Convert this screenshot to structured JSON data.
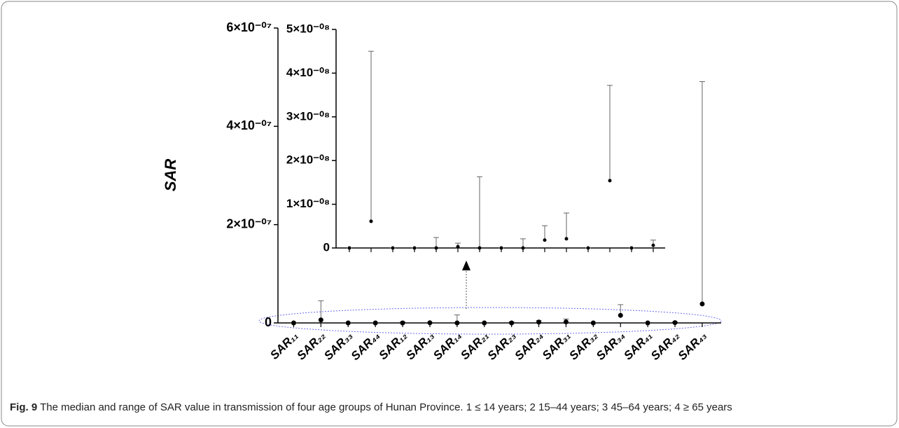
{
  "chart_data": [
    {
      "type": "range",
      "y_label": "SAR",
      "categories": [
        "SAR₁₁",
        "SAR₂₂",
        "SAR₃₃",
        "SAR₄₄",
        "SAR₁₂",
        "SAR₁₃",
        "SAR₁₄",
        "SAR₂₁",
        "SAR₂₃",
        "SAR₂₄",
        "SAR₃₁",
        "SAR₃₂",
        "SAR₃₄",
        "SAR₄₁",
        "SAR₄₂",
        "SAR₄₃"
      ],
      "values": [
        0,
        6.1e-09,
        0,
        0,
        0,
        3e-10,
        0,
        0,
        0,
        1.8e-09,
        2.1e-09,
        0,
        1.54e-08,
        0,
        6e-10,
        3.86e-08
      ],
      "max": [
        0,
        4.5e-08,
        0,
        0,
        2.4e-09,
        1.1e-09,
        1.63e-08,
        0,
        2.1e-09,
        5.1e-09,
        8e-09,
        0,
        3.72e-08,
        0,
        1.8e-09,
        4.91e-07
      ],
      "color": "#000000",
      "ylim": [
        0,
        6e-07
      ],
      "yticks": [
        0,
        {
          "value": 2e-07,
          "label": "2×10⁻⁰⁷"
        },
        {
          "value": 4e-07,
          "label": "4×10⁻⁰⁷"
        },
        {
          "value": 6e-07,
          "label": "6×10⁻⁰⁷"
        }
      ]
    },
    {
      "type": "range",
      "values": [
        0,
        6.1e-09,
        0,
        0,
        0,
        3e-10,
        0,
        0,
        0,
        1.8e-09,
        2.1e-09,
        0,
        1.54e-08,
        0,
        6e-10
      ],
      "max": [
        0,
        4.5e-08,
        0,
        0,
        2.4e-09,
        1.1e-09,
        1.63e-08,
        0,
        2.1e-09,
        5.1e-09,
        8e-09,
        0,
        3.72e-08,
        0,
        1.8e-09
      ],
      "color": "#000000",
      "ylim": [
        0,
        5e-08
      ],
      "yticks": [
        0,
        {
          "value": 1e-08,
          "label": "1×10⁻⁰⁸"
        },
        {
          "value": 2e-08,
          "label": "2×10⁻⁰⁸"
        },
        {
          "value": 3e-08,
          "label": "3×10⁻⁰⁸"
        },
        {
          "value": 4e-08,
          "label": "4×10⁻⁰⁸"
        },
        {
          "value": 5e-08,
          "label": "5×10⁻⁰⁸"
        }
      ]
    }
  ],
  "caption": {
    "label": "Fig. 9",
    "text": "The median and range of SAR value in transmission of four age groups of Hunan Province. 1 ≤ 14 years; 2 15–44 years; 3 45–64 years; 4 ≥ 65 years"
  }
}
